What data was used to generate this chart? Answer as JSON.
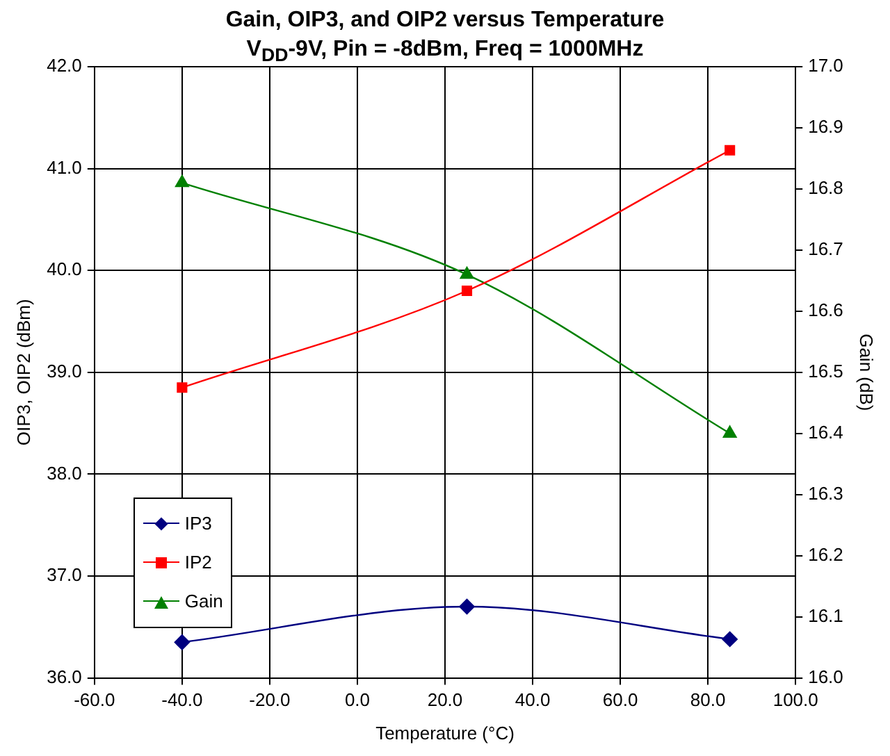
{
  "chart_data": {
    "type": "line",
    "title": "Gain, OIP3, and OIP2 versus Temperature",
    "subtitle": "V$_{DD}$-9V, Pin = -8dBm, Freq = 1000MHz",
    "xlabel": "Temperature (°C)",
    "ylabel": "OIP3, OIP2 (dBm)",
    "y2label": "Gain (dB)",
    "x": [
      -40,
      25,
      85
    ],
    "series": [
      {
        "name": "IP3",
        "color": "#000080",
        "marker": "diamond",
        "values": [
          36.35,
          36.7,
          36.38
        ]
      },
      {
        "name": "IP2",
        "color": "#ff0000",
        "marker": "square",
        "values": [
          38.85,
          39.8,
          41.18
        ]
      },
      {
        "name": "Gain",
        "color": "#008000",
        "marker": "triangle",
        "axis": "y2",
        "values": [
          16.81,
          16.66,
          16.4
        ]
      }
    ],
    "xlim": [
      -60,
      100
    ],
    "xticks": [
      {
        "value": -60,
        "label": "-60.0"
      },
      {
        "value": -40,
        "label": "-40.0"
      },
      {
        "value": -20,
        "label": "-20.0"
      },
      {
        "value": 0,
        "label": "0.0"
      },
      {
        "value": 20,
        "label": "20.0"
      },
      {
        "value": 40,
        "label": "40.0"
      },
      {
        "value": 60,
        "label": "60.0"
      },
      {
        "value": 80,
        "label": "80.0"
      },
      {
        "value": 100,
        "label": "100.0"
      }
    ],
    "ylim": [
      36,
      42
    ],
    "yticks": [
      {
        "value": 36,
        "label": "36.0"
      },
      {
        "value": 37,
        "label": "37.0"
      },
      {
        "value": 38,
        "label": "38.0"
      },
      {
        "value": 39,
        "label": "39.0"
      },
      {
        "value": 40,
        "label": "40.0"
      },
      {
        "value": 41,
        "label": "41.0"
      },
      {
        "value": 42,
        "label": "42.0"
      }
    ],
    "y2lim": [
      16,
      17
    ],
    "y2ticks": [
      {
        "value": 16,
        "label": "16.0"
      },
      {
        "value": 16.1,
        "label": "16.1"
      },
      {
        "value": 16.2,
        "label": "16.2"
      },
      {
        "value": 16.3,
        "label": "16.3"
      },
      {
        "value": 16.4,
        "label": "16.4"
      },
      {
        "value": 16.5,
        "label": "16.5"
      },
      {
        "value": 16.6,
        "label": "16.6"
      },
      {
        "value": 16.7,
        "label": "16.7"
      },
      {
        "value": 16.8,
        "label": "16.8"
      },
      {
        "value": 16.9,
        "label": "16.9"
      },
      {
        "value": 17,
        "label": "17.0"
      }
    ],
    "grid": true,
    "legend": "bottom left",
    "line_style": "solid"
  }
}
